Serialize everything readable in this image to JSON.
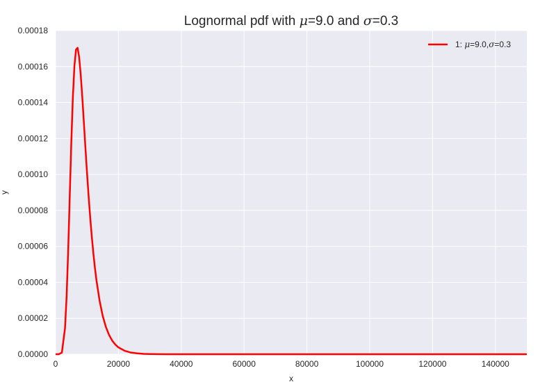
{
  "chart_data": {
    "type": "line",
    "title_parts": [
      {
        "text": "Lognormal pdf with ",
        "math": false
      },
      {
        "text": "μ",
        "math": true
      },
      {
        "text": "=9.0 and ",
        "math": false
      },
      {
        "text": "σ",
        "math": true
      },
      {
        "text": "=0.3",
        "math": false
      }
    ],
    "xlabel": "x",
    "ylabel": "y",
    "xlim": [
      0,
      150000
    ],
    "ylim": [
      0,
      0.00018
    ],
    "xticks": [
      0,
      20000,
      40000,
      60000,
      80000,
      100000,
      120000,
      140000
    ],
    "xtick_labels": [
      "0",
      "20000",
      "40000",
      "60000",
      "80000",
      "100000",
      "120000",
      "140000"
    ],
    "yticks": [
      0,
      2e-05,
      4e-05,
      6e-05,
      8e-05,
      0.0001,
      0.00012,
      0.00014,
      0.00016,
      0.00018
    ],
    "ytick_labels": [
      "0.00000",
      "0.00002",
      "0.00004",
      "0.00006",
      "0.00008",
      "0.00010",
      "0.00012",
      "0.00014",
      "0.00016",
      "0.00018"
    ],
    "grid": true,
    "legend_position": "top-right",
    "legend_parts": [
      {
        "text": "1: ",
        "math": false
      },
      {
        "text": "μ",
        "math": true
      },
      {
        "text": "=9.0,",
        "math": false
      },
      {
        "text": "σ",
        "math": true
      },
      {
        "text": "=0.3",
        "math": false
      }
    ],
    "series": [
      {
        "color": "#ff0000",
        "mu": 9.0,
        "sigma": 0.3,
        "x": [
          0,
          1000,
          2000,
          3000,
          3500,
          4000,
          4500,
          5000,
          5500,
          6000,
          6500,
          7000,
          7500,
          8000,
          8500,
          9000,
          9500,
          10000,
          10500,
          11000,
          11500,
          12000,
          12500,
          13000,
          14000,
          15000,
          16000,
          17000,
          18000,
          19000,
          20000,
          22000,
          24000,
          26000,
          28000,
          30000,
          35000,
          40000,
          60000,
          80000,
          100000,
          120000,
          150000
        ],
        "y": [
          0,
          0.0,
          9e-07,
          1.45e-05,
          3.19e-05,
          5.73e-05,
          8.75e-05,
          0.0001176,
          0.0001431,
          0.0001605,
          0.0001694,
          0.0001704,
          0.0001651,
          0.0001554,
          0.0001428,
          0.0001289,
          0.0001146,
          0.0001009,
          8.81e-05,
          7.64e-05,
          6.58e-05,
          5.65e-05,
          4.83e-05,
          4.12e-05,
          2.98e-05,
          2.13e-05,
          1.52e-05,
          1.08e-05,
          7.6e-06,
          5.4e-06,
          3.8e-06,
          1.9e-06,
          9e-07,
          5e-07,
          2e-07,
          1e-07,
          0.0,
          0.0,
          0,
          0,
          0,
          0,
          0
        ]
      }
    ]
  }
}
